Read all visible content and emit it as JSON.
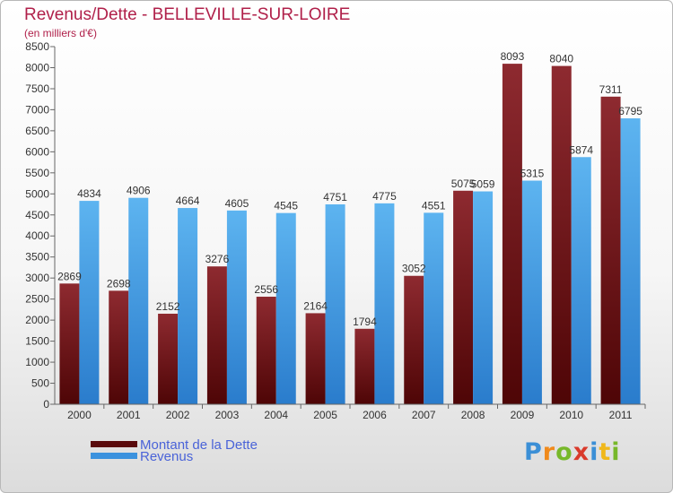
{
  "header": {
    "title": "Revenus/Dette - BELLEVILLE-SUR-LOIRE",
    "subtitle": "(en milliers d'€)"
  },
  "logo": {
    "text": "Proxiti"
  },
  "chart_data": {
    "type": "bar",
    "title": "Revenus/Dette - BELLEVILLE-SUR-LOIRE",
    "subtitle": "(en milliers d'€)",
    "categories": [
      "2000",
      "2001",
      "2002",
      "2003",
      "2004",
      "2005",
      "2006",
      "2007",
      "2008",
      "2009",
      "2010",
      "2011"
    ],
    "series": [
      {
        "name": "Montant de la Dette",
        "color": "#7a1c20",
        "values": [
          2869,
          2698,
          2152,
          3276,
          2556,
          2164,
          1794,
          3052,
          5075,
          8093,
          8040,
          7311
        ]
      },
      {
        "name": "Revenus",
        "color": "#4ea4e6",
        "values": [
          4834,
          4906,
          4664,
          4605,
          4545,
          4751,
          4775,
          4551,
          5059,
          5315,
          5874,
          6795
        ]
      }
    ],
    "ylim": [
      0,
      8500
    ],
    "ytick_step": 500,
    "grid": false,
    "legend": "bottom-left"
  }
}
